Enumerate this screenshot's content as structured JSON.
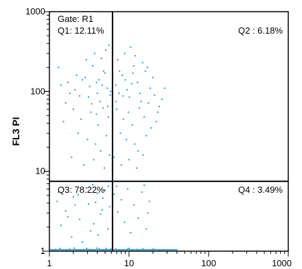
{
  "chart_data": {
    "type": "scatter",
    "title": "",
    "xlabel": "",
    "ylabel": "FL3  PI",
    "xscale": "log",
    "yscale": "log",
    "xlim": [
      1,
      1000
    ],
    "ylim": [
      1,
      1000
    ],
    "x_ticks": [
      {
        "value": 1,
        "label": "1"
      },
      {
        "value": 10,
        "label": "10"
      },
      {
        "value": 100,
        "label": "100"
      },
      {
        "value": 1000,
        "label": "1000"
      }
    ],
    "y_ticks": [
      {
        "value": 1,
        "label": "1"
      },
      {
        "value": 10,
        "label": "10"
      },
      {
        "value": 100,
        "label": "100"
      },
      {
        "value": 1000,
        "label": "1000"
      }
    ],
    "gate_label": "Gate: R1",
    "quadrant_divider": {
      "x": 6.2,
      "y": 7.5
    },
    "quadrants": [
      {
        "id": "Q1",
        "label": "Q1: 12.11%",
        "percent": 12.11
      },
      {
        "id": "Q2",
        "label": "Q2 : 6.18%",
        "percent": 6.18
      },
      {
        "id": "Q3",
        "label": "Q3: 78.22%",
        "percent": 78.22
      },
      {
        "id": "Q4",
        "label": "Q4 : 3.49%",
        "percent": 3.49
      }
    ],
    "grid": false,
    "colors": {
      "points": "#1e9be0",
      "divider": "#000000",
      "axis": "#000000"
    },
    "points": [
      [
        1.4,
        120
      ],
      [
        1.8,
        95
      ],
      [
        2.2,
        160
      ],
      [
        2.6,
        140
      ],
      [
        3.1,
        85
      ],
      [
        3.5,
        210
      ],
      [
        3.9,
        130
      ],
      [
        4.3,
        75
      ],
      [
        4.8,
        180
      ],
      [
        5.3,
        110
      ],
      [
        5.8,
        90
      ],
      [
        2.0,
        60
      ],
      [
        2.5,
        45
      ],
      [
        3.3,
        55
      ],
      [
        4.1,
        38
      ],
      [
        4.7,
        62
      ],
      [
        5.5,
        48
      ],
      [
        1.6,
        72
      ],
      [
        2.9,
        250
      ],
      [
        3.7,
        300
      ],
      [
        4.5,
        260
      ],
      [
        5.1,
        330
      ],
      [
        5.6,
        380
      ],
      [
        2.3,
        30
      ],
      [
        3.0,
        25
      ],
      [
        3.8,
        22
      ],
      [
        4.4,
        18
      ],
      [
        5.2,
        28
      ],
      [
        1.9,
        15
      ],
      [
        2.7,
        12
      ],
      [
        3.6,
        14
      ],
      [
        4.9,
        11
      ],
      [
        5.7,
        16
      ],
      [
        1.3,
        200
      ],
      [
        1.5,
        42
      ],
      [
        2.1,
        105
      ],
      [
        2.4,
        88
      ],
      [
        2.8,
        150
      ],
      [
        3.2,
        115
      ],
      [
        3.4,
        70
      ],
      [
        4.0,
        95
      ],
      [
        4.2,
        140
      ],
      [
        4.6,
        120
      ],
      [
        5.0,
        170
      ],
      [
        5.4,
        65
      ],
      [
        1.7,
        130
      ],
      [
        3.9,
        52
      ],
      [
        5.9,
        100
      ],
      [
        6.8,
        120
      ],
      [
        7.5,
        95
      ],
      [
        8.2,
        160
      ],
      [
        9.0,
        140
      ],
      [
        10.1,
        85
      ],
      [
        11.5,
        210
      ],
      [
        12.8,
        130
      ],
      [
        14.2,
        75
      ],
      [
        16.0,
        180
      ],
      [
        18.5,
        110
      ],
      [
        21.0,
        90
      ],
      [
        24.0,
        65
      ],
      [
        7.0,
        60
      ],
      [
        8.5,
        45
      ],
      [
        9.8,
        55
      ],
      [
        11.0,
        38
      ],
      [
        13.5,
        62
      ],
      [
        15.5,
        48
      ],
      [
        7.2,
        250
      ],
      [
        8.8,
        300
      ],
      [
        10.5,
        360
      ],
      [
        12.0,
        280
      ],
      [
        14.8,
        230
      ],
      [
        17.0,
        200
      ],
      [
        20.0,
        150
      ],
      [
        7.8,
        30
      ],
      [
        9.3,
        25
      ],
      [
        11.8,
        22
      ],
      [
        13.0,
        18
      ],
      [
        16.5,
        28
      ],
      [
        6.5,
        15
      ],
      [
        8.0,
        12
      ],
      [
        10.0,
        14
      ],
      [
        12.5,
        11
      ],
      [
        15.0,
        16
      ],
      [
        19.0,
        35
      ],
      [
        22.0,
        42
      ],
      [
        26.0,
        80
      ],
      [
        28.0,
        110
      ],
      [
        6.9,
        75
      ],
      [
        7.6,
        180
      ],
      [
        8.4,
        88
      ],
      [
        9.5,
        105
      ],
      [
        10.8,
        125
      ],
      [
        11.2,
        170
      ],
      [
        13.8,
        95
      ],
      [
        17.5,
        72
      ],
      [
        23.0,
        55
      ],
      [
        1.3,
        5.5
      ],
      [
        1.6,
        3.2
      ],
      [
        2.0,
        4.8
      ],
      [
        2.4,
        2.5
      ],
      [
        2.9,
        6.2
      ],
      [
        3.3,
        1.8
      ],
      [
        3.8,
        4.1
      ],
      [
        4.4,
        2.9
      ],
      [
        5.0,
        5.8
      ],
      [
        5.7,
        3.6
      ],
      [
        1.4,
        2.1
      ],
      [
        1.9,
        1.5
      ],
      [
        2.6,
        1.3
      ],
      [
        3.1,
        3.9
      ],
      [
        3.6,
        2.2
      ],
      [
        4.1,
        1.6
      ],
      [
        4.7,
        4.6
      ],
      [
        5.4,
        1.9
      ],
      [
        1.2,
        1.05
      ],
      [
        1.5,
        1.03
      ],
      [
        1.8,
        1.06
      ],
      [
        2.2,
        1.04
      ],
      [
        2.7,
        1.02
      ],
      [
        3.2,
        1.05
      ],
      [
        3.7,
        1.03
      ],
      [
        4.2,
        1.07
      ],
      [
        4.8,
        1.04
      ],
      [
        5.3,
        1.02
      ],
      [
        5.9,
        1.06
      ],
      [
        1.1,
        1.02
      ],
      [
        1.35,
        1.08
      ],
      [
        1.65,
        1.01
      ],
      [
        2.05,
        1.09
      ],
      [
        2.5,
        1.01
      ],
      [
        2.95,
        1.08
      ],
      [
        3.45,
        1.01
      ],
      [
        3.95,
        1.09
      ],
      [
        4.55,
        1.01
      ],
      [
        5.15,
        1.08
      ],
      [
        5.65,
        1.01
      ],
      [
        1.7,
        2.7
      ],
      [
        2.3,
        5.1
      ],
      [
        3.5,
        6.8
      ],
      [
        4.6,
        3.3
      ],
      [
        5.5,
        6.5
      ],
      [
        2.1,
        3.8
      ],
      [
        4.0,
        5.3
      ],
      [
        1.25,
        4.2
      ],
      [
        6.5,
        5.2
      ],
      [
        7.2,
        3.1
      ],
      [
        8.0,
        4.4
      ],
      [
        8.8,
        2.3
      ],
      [
        9.6,
        6.0
      ],
      [
        10.5,
        1.7
      ],
      [
        11.5,
        3.8
      ],
      [
        13.0,
        2.6
      ],
      [
        14.5,
        5.5
      ],
      [
        16.5,
        1.9
      ],
      [
        18.0,
        4.2
      ],
      [
        7.5,
        1.04
      ],
      [
        8.5,
        1.02
      ],
      [
        9.5,
        1.06
      ],
      [
        11.0,
        1.03
      ],
      [
        12.5,
        1.05
      ],
      [
        14.0,
        1.02
      ],
      [
        16.0,
        1.04
      ],
      [
        18.5,
        1.03
      ],
      [
        21.0,
        1.05
      ],
      [
        24.0,
        1.02
      ],
      [
        27.0,
        1.04
      ],
      [
        30.0,
        1.03
      ],
      [
        6.8,
        1.07
      ],
      [
        10.0,
        1.08
      ],
      [
        15.0,
        1.07
      ],
      [
        20.0,
        1.06
      ],
      [
        15.5,
        6.7
      ],
      [
        17.2,
        3.0
      ],
      [
        7.0,
        6.5
      ]
    ]
  }
}
